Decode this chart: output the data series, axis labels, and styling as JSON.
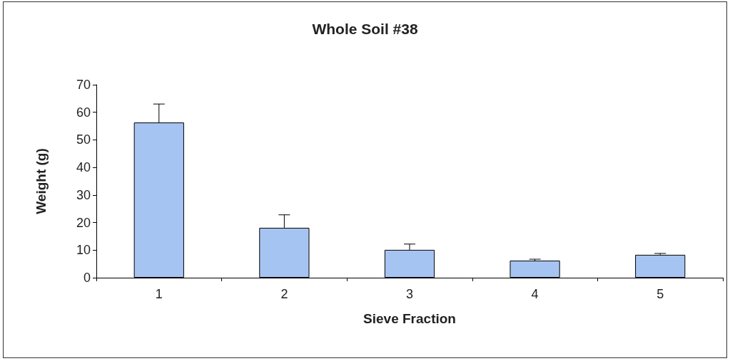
{
  "chart_data": {
    "type": "bar",
    "title": "Whole Soil #38",
    "xlabel": "Sieve Fraction",
    "ylabel": "Weight (g)",
    "categories": [
      "1",
      "2",
      "3",
      "4",
      "5"
    ],
    "values": [
      56.3,
      18.1,
      10.1,
      6.2,
      8.3
    ],
    "errors": [
      [
        56.3,
        63.0
      ],
      [
        18.1,
        22.8
      ],
      [
        10.1,
        12.2
      ],
      [
        6.2,
        6.7
      ],
      [
        8.3,
        8.8
      ]
    ],
    "color": "#a6c4f2",
    "ylim": [
      0,
      70
    ],
    "yticks": [
      0,
      10,
      20,
      30,
      40,
      50,
      60,
      70
    ],
    "grid": false
  }
}
